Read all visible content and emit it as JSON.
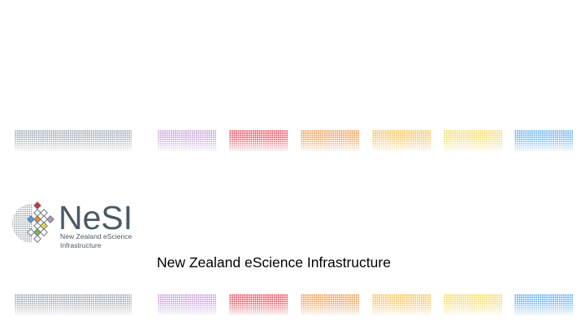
{
  "logo": {
    "name": "NeSI",
    "subtitle_line1": "New Zealand eScience",
    "subtitle_line2": "Infrastructure"
  },
  "tagline": "New Zealand eScience Infrastructure",
  "colors": {
    "gray": "#8f9aa3",
    "purple": "#b993cf",
    "red": "#d2303f",
    "orange": "#e28a3a",
    "yellow_orange": "#f2b43a",
    "yellow": "#f0d24a",
    "blue": "#4d9de0",
    "logo_text": "#4a5a64"
  },
  "icons": [
    "nesi-logo-mark-icon"
  ]
}
